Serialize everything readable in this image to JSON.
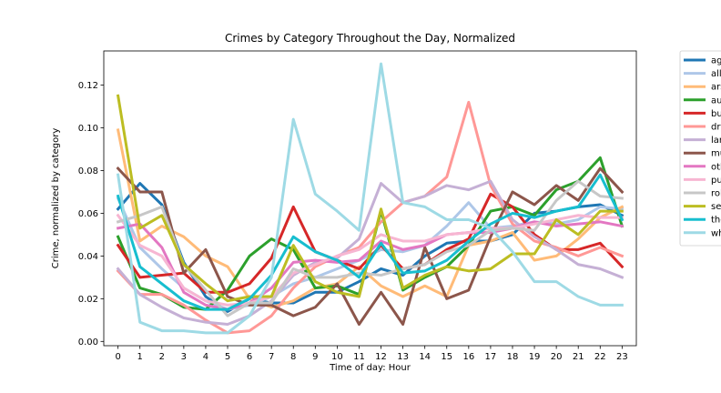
{
  "chart_data": {
    "type": "line",
    "title": "Crimes by Category Throughout the Day, Normalized",
    "xlabel": "Time of day: Hour",
    "ylabel": "Crime, normalized by category",
    "x": [
      0,
      1,
      2,
      3,
      4,
      5,
      6,
      7,
      8,
      9,
      10,
      11,
      12,
      13,
      14,
      15,
      16,
      17,
      18,
      19,
      20,
      21,
      22,
      23
    ],
    "x_tick_labels": [
      "0",
      "1",
      "2",
      "3",
      "4",
      "5",
      "6",
      "7",
      "8",
      "9",
      "10",
      "11",
      "12",
      "13",
      "14",
      "15",
      "16",
      "17",
      "18",
      "19",
      "20",
      "21",
      "22",
      "23"
    ],
    "ylim": [
      -0.002,
      0.136
    ],
    "y_ticks": [
      0.0,
      0.02,
      0.04,
      0.06,
      0.08,
      0.1,
      0.12
    ],
    "y_tick_labels": [
      "0.00",
      "0.02",
      "0.04",
      "0.06",
      "0.08",
      "0.10",
      "0.12"
    ],
    "grid": false,
    "legend_position": "outside-right",
    "series": [
      {
        "name": "ag",
        "color": "#1f77b4",
        "values": [
          0.062,
          0.074,
          0.064,
          0.037,
          0.021,
          0.014,
          0.02,
          0.018,
          0.018,
          0.023,
          0.023,
          0.028,
          0.034,
          0.031,
          0.04,
          0.046,
          0.047,
          0.047,
          0.05,
          0.06,
          0.061,
          0.063,
          0.064,
          0.059
        ]
      },
      {
        "name": "all",
        "color": "#aec7e8",
        "values": [
          0.067,
          0.044,
          0.034,
          0.025,
          0.019,
          0.015,
          0.017,
          0.021,
          0.027,
          0.03,
          0.034,
          0.038,
          0.043,
          0.042,
          0.045,
          0.054,
          0.065,
          0.053,
          0.054,
          0.056,
          0.055,
          0.057,
          0.063,
          0.062
        ]
      },
      {
        "name": "ars",
        "color": "#ffbb78",
        "values": [
          0.099,
          0.047,
          0.054,
          0.049,
          0.04,
          0.035,
          0.02,
          0.016,
          0.019,
          0.025,
          0.027,
          0.035,
          0.026,
          0.021,
          0.026,
          0.021,
          0.045,
          0.047,
          0.051,
          0.038,
          0.04,
          0.048,
          0.058,
          0.063
        ]
      },
      {
        "name": "au",
        "color": "#2ca02c",
        "values": [
          0.049,
          0.025,
          0.022,
          0.016,
          0.015,
          0.024,
          0.04,
          0.048,
          0.043,
          0.025,
          0.026,
          0.022,
          0.061,
          0.024,
          0.03,
          0.035,
          0.045,
          0.061,
          0.063,
          0.059,
          0.071,
          0.075,
          0.086,
          0.054
        ]
      },
      {
        "name": "bu",
        "color": "#d62728",
        "values": [
          0.045,
          0.03,
          0.031,
          0.032,
          0.023,
          0.023,
          0.027,
          0.039,
          0.063,
          0.042,
          0.038,
          0.034,
          0.045,
          0.034,
          0.036,
          0.043,
          0.048,
          0.069,
          0.063,
          0.05,
          0.043,
          0.043,
          0.046,
          0.035
        ]
      },
      {
        "name": "dr",
        "color": "#ff9896",
        "values": [
          0.033,
          0.022,
          0.022,
          0.017,
          0.01,
          0.004,
          0.005,
          0.012,
          0.025,
          0.035,
          0.04,
          0.044,
          0.056,
          0.065,
          0.068,
          0.077,
          0.112,
          0.073,
          0.055,
          0.047,
          0.044,
          0.04,
          0.044,
          0.04
        ]
      },
      {
        "name": "lar",
        "color": "#c5b0d5",
        "values": [
          0.034,
          0.022,
          0.016,
          0.011,
          0.009,
          0.008,
          0.012,
          0.019,
          0.031,
          0.037,
          0.039,
          0.048,
          0.074,
          0.065,
          0.068,
          0.073,
          0.071,
          0.075,
          0.057,
          0.049,
          0.043,
          0.036,
          0.034,
          0.03
        ]
      },
      {
        "name": "mu",
        "color": "#8c564b",
        "values": [
          0.081,
          0.07,
          0.07,
          0.032,
          0.043,
          0.021,
          0.017,
          0.017,
          0.012,
          0.016,
          0.027,
          0.008,
          0.023,
          0.008,
          0.044,
          0.02,
          0.024,
          0.049,
          0.07,
          0.064,
          0.073,
          0.066,
          0.081,
          0.07
        ]
      },
      {
        "name": "oth",
        "color": "#e377c2",
        "values": [
          0.053,
          0.055,
          0.044,
          0.023,
          0.017,
          0.015,
          0.018,
          0.025,
          0.037,
          0.038,
          0.037,
          0.038,
          0.047,
          0.043,
          0.045,
          0.05,
          0.051,
          0.051,
          0.053,
          0.056,
          0.054,
          0.055,
          0.056,
          0.054
        ]
      },
      {
        "name": "pu",
        "color": "#f7b6d2",
        "values": [
          0.059,
          0.045,
          0.04,
          0.025,
          0.019,
          0.017,
          0.018,
          0.021,
          0.032,
          0.036,
          0.04,
          0.043,
          0.05,
          0.047,
          0.047,
          0.05,
          0.051,
          0.053,
          0.053,
          0.055,
          0.057,
          0.059,
          0.058,
          0.058
        ]
      },
      {
        "name": "rol",
        "color": "#c7c7c7",
        "values": [
          0.056,
          0.059,
          0.063,
          0.036,
          0.024,
          0.012,
          0.018,
          0.018,
          0.034,
          0.03,
          0.03,
          0.032,
          0.031,
          0.034,
          0.036,
          0.042,
          0.045,
          0.052,
          0.053,
          0.052,
          0.066,
          0.075,
          0.068,
          0.067
        ]
      },
      {
        "name": "se",
        "color": "#bcbd22",
        "values": [
          0.115,
          0.053,
          0.059,
          0.036,
          0.027,
          0.019,
          0.021,
          0.021,
          0.045,
          0.028,
          0.023,
          0.021,
          0.062,
          0.025,
          0.031,
          0.035,
          0.033,
          0.034,
          0.041,
          0.041,
          0.057,
          0.05,
          0.061,
          0.061
        ]
      },
      {
        "name": "the",
        "color": "#17becf",
        "values": [
          0.068,
          0.035,
          0.027,
          0.019,
          0.015,
          0.015,
          0.02,
          0.031,
          0.049,
          0.042,
          0.038,
          0.03,
          0.046,
          0.032,
          0.033,
          0.038,
          0.047,
          0.055,
          0.06,
          0.058,
          0.061,
          0.063,
          0.078,
          0.057
        ]
      },
      {
        "name": "wh",
        "color": "#9edae5",
        "values": [
          0.078,
          0.009,
          0.005,
          0.005,
          0.004,
          0.004,
          0.012,
          0.03,
          0.104,
          0.069,
          0.061,
          0.052,
          0.13,
          0.065,
          0.063,
          0.057,
          0.057,
          0.053,
          0.042,
          0.028,
          0.028,
          0.021,
          0.017,
          0.017
        ]
      }
    ]
  }
}
